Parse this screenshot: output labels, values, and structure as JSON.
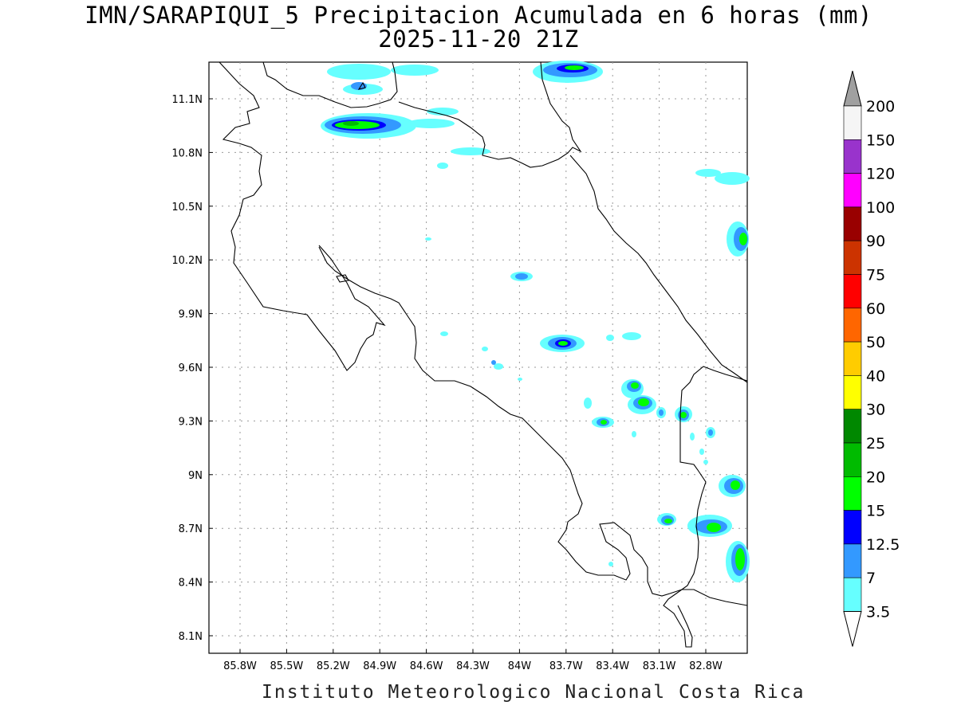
{
  "title": {
    "line1": "IMN/SARAPIQUI_5 Precipitacion Acumulada en 6 horas (mm)",
    "line2": "2025-11-20 21Z"
  },
  "footer": "Instituto Meteorologico Nacional Costa Rica",
  "axes": {
    "lon_ticks": [
      "85.8W",
      "85.5W",
      "85.2W",
      "84.9W",
      "84.6W",
      "84.3W",
      "84W",
      "83.7W",
      "83.4W",
      "83.1W",
      "82.8W"
    ],
    "lat_ticks": [
      "11.1N",
      "10.8N",
      "10.5N",
      "10.2N",
      "9.9N",
      "9.6N",
      "9.3N",
      "9N",
      "8.7N",
      "8.4N",
      "8.1N"
    ],
    "grid": true
  },
  "colorbar": {
    "labels": [
      "200",
      "150",
      "120",
      "100",
      "90",
      "75",
      "60",
      "50",
      "40",
      "30",
      "25",
      "20",
      "15",
      "12.5",
      "7",
      "3.5"
    ],
    "colors": [
      "#f5f5f5",
      "#9933cc",
      "#ff00ff",
      "#990000",
      "#cc3300",
      "#ff0000",
      "#ff6600",
      "#ffcc00",
      "#ffff00",
      "#008800",
      "#00bb00",
      "#00ff00",
      "#0000ff",
      "#3399ff",
      "#66ffff"
    ],
    "over_color": "#a0a0a0",
    "under_color": "#ffffff"
  }
}
